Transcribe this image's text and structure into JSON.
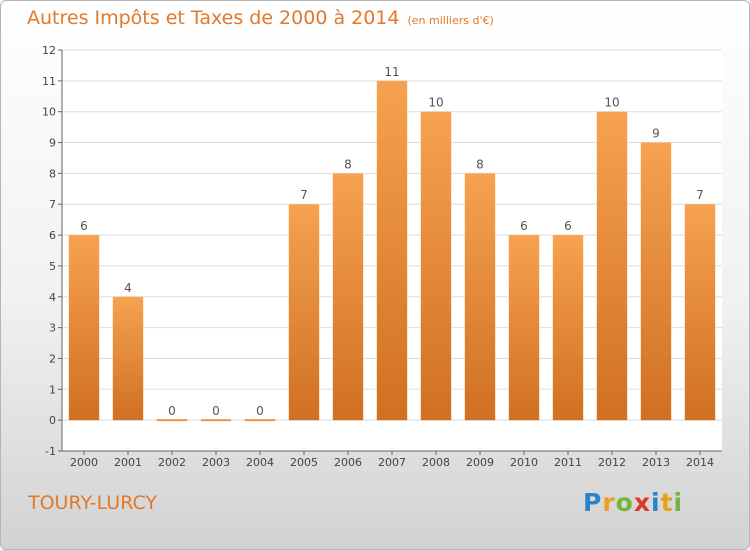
{
  "chart_data": {
    "type": "bar",
    "title": "Autres Impôts et Taxes de 2000 à 2014",
    "unit": "(en milliers d'€)",
    "categories": [
      "2000",
      "2001",
      "2002",
      "2003",
      "2004",
      "2005",
      "2006",
      "2007",
      "2008",
      "2009",
      "2010",
      "2011",
      "2012",
      "2013",
      "2014"
    ],
    "values": [
      6,
      4,
      0,
      0,
      0,
      7,
      8,
      11,
      10,
      8,
      6,
      6,
      10,
      9,
      7
    ],
    "ylim": [
      -1,
      12
    ],
    "yticks": [
      -1,
      0,
      1,
      2,
      3,
      4,
      5,
      6,
      7,
      8,
      9,
      10,
      11,
      12
    ],
    "grid": true,
    "bar_color": "#f0923e"
  },
  "location": "TOURY-LURCY",
  "logo": {
    "p": "P",
    "r": "r",
    "o": "o",
    "x": "x",
    "i1": "i",
    "t": "t",
    "i2": "i"
  }
}
